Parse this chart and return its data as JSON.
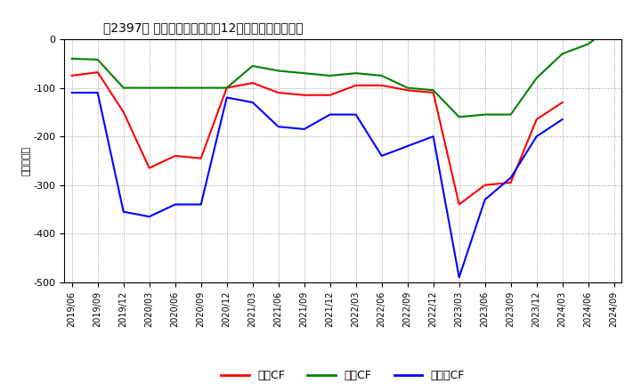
{
  "title": "　2397、 キャッシュフローの12か月移動合計の推移",
  "ylabel": "（百万円）",
  "x_labels": [
    "2019/06",
    "2019/09",
    "2019/12",
    "2020/03",
    "2020/06",
    "2020/09",
    "2020/12",
    "2021/03",
    "2021/06",
    "2021/09",
    "2021/12",
    "2022/03",
    "2022/06",
    "2022/09",
    "2022/12",
    "2023/03",
    "2023/06",
    "2023/09",
    "2023/12",
    "2024/03",
    "2024/06",
    "2024/09"
  ],
  "operating_cf": [
    -75,
    -68,
    -150,
    -265,
    -240,
    -245,
    -100,
    -90,
    -110,
    -115,
    -115,
    -95,
    -95,
    -105,
    -110,
    -340,
    -300,
    -295,
    -165,
    -130,
    null,
    null
  ],
  "investing_cf": [
    -40,
    -42,
    -100,
    -100,
    -100,
    -100,
    -100,
    -55,
    -65,
    -70,
    -75,
    -70,
    -75,
    -100,
    -105,
    -160,
    -155,
    -155,
    -80,
    -30,
    -10,
    30
  ],
  "free_cf": [
    -110,
    -110,
    -355,
    -365,
    -340,
    -340,
    -120,
    -130,
    -180,
    -185,
    -155,
    -155,
    -240,
    -220,
    -200,
    -490,
    -330,
    -285,
    -200,
    -165,
    null,
    null
  ],
  "ylim": [
    -500,
    0
  ],
  "yticks": [
    -500,
    -400,
    -300,
    -200,
    -100,
    0
  ],
  "legend_labels": [
    "営業CF",
    "投資CF",
    "フリーCF"
  ],
  "colors": [
    "#ff0000",
    "#008000",
    "#0000ff"
  ],
  "background_color": "#ffffff",
  "grid_color": "#aaaaaa"
}
